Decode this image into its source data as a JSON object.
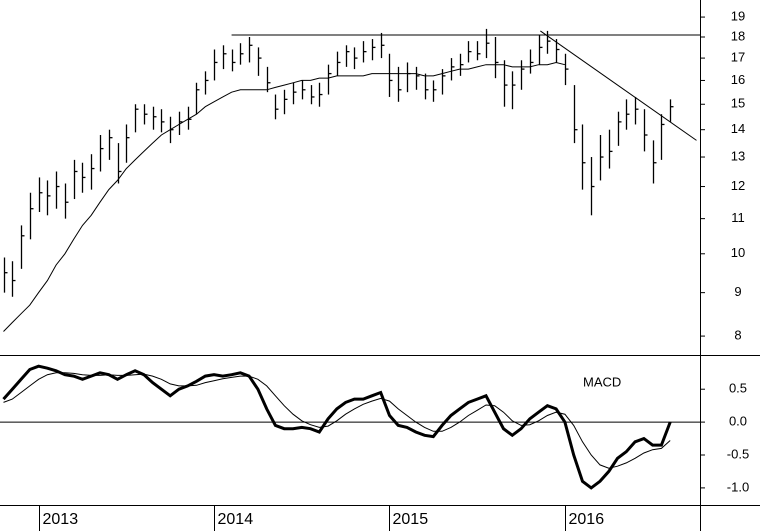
{
  "chart_data": [
    {
      "type": "ohlc",
      "log_scale": true,
      "color": "#000000",
      "x": [
        2012.8,
        2012.85,
        2012.9,
        2012.95,
        2013.0,
        2013.05,
        2013.1,
        2013.15,
        2013.2,
        2013.25,
        2013.3,
        2013.35,
        2013.4,
        2013.45,
        2013.5,
        2013.55,
        2013.6,
        2013.65,
        2013.7,
        2013.75,
        2013.8,
        2013.85,
        2013.9,
        2013.95,
        2014.0,
        2014.05,
        2014.1,
        2014.15,
        2014.2,
        2014.25,
        2014.3,
        2014.35,
        2014.4,
        2014.45,
        2014.5,
        2014.55,
        2014.6,
        2014.65,
        2014.7,
        2014.75,
        2014.8,
        2014.85,
        2014.9,
        2014.95,
        2015.0,
        2015.05,
        2015.1,
        2015.15,
        2015.2,
        2015.25,
        2015.3,
        2015.35,
        2015.4,
        2015.45,
        2015.5,
        2015.55,
        2015.6,
        2015.65,
        2015.7,
        2015.75,
        2015.8,
        2015.85,
        2015.9,
        2015.95,
        2016.0,
        2016.05,
        2016.1,
        2016.15,
        2016.2,
        2016.25,
        2016.3,
        2016.35,
        2016.4,
        2016.45,
        2016.5,
        2016.55,
        2016.6
      ],
      "high": [
        9.9,
        9.8,
        10.8,
        11.8,
        12.3,
        12.2,
        12.5,
        12.1,
        12.9,
        12.8,
        13.1,
        13.8,
        14.0,
        13.5,
        14.2,
        15.0,
        15.0,
        14.9,
        14.8,
        14.5,
        14.7,
        14.9,
        15.9,
        16.4,
        17.4,
        17.6,
        17.4,
        17.7,
        18.0,
        17.5,
        16.6,
        15.4,
        15.6,
        15.9,
        16.0,
        15.8,
        15.9,
        16.7,
        17.3,
        17.6,
        17.5,
        17.8,
        17.9,
        18.2,
        17.2,
        16.6,
        16.8,
        16.6,
        16.3,
        16.0,
        16.5,
        17.0,
        17.2,
        17.8,
        17.8,
        18.4,
        18.0,
        16.9,
        16.4,
        16.9,
        17.4,
        18.1,
        18.3,
        17.9,
        17.2,
        15.8,
        14.2,
        13.0,
        13.8,
        14.0,
        14.7,
        15.2,
        15.3,
        14.8,
        13.6,
        14.6,
        15.2
      ],
      "low": [
        9.0,
        8.9,
        9.6,
        10.4,
        11.2,
        11.1,
        11.3,
        11.0,
        11.6,
        11.8,
        11.9,
        12.5,
        12.9,
        12.1,
        12.8,
        13.9,
        14.2,
        14.0,
        13.9,
        13.5,
        13.8,
        14.0,
        14.6,
        15.4,
        16.0,
        16.5,
        16.4,
        16.7,
        16.8,
        16.2,
        15.5,
        14.4,
        14.6,
        15.0,
        15.2,
        15.0,
        14.9,
        15.4,
        16.2,
        16.6,
        16.5,
        16.8,
        16.9,
        17.0,
        15.3,
        15.1,
        15.5,
        15.6,
        15.2,
        15.1,
        15.4,
        16.0,
        16.2,
        16.8,
        16.9,
        17.0,
        16.1,
        14.9,
        14.8,
        15.6,
        16.3,
        16.7,
        17.2,
        16.8,
        15.8,
        13.5,
        11.9,
        11.1,
        12.2,
        12.6,
        13.4,
        14.0,
        14.2,
        13.2,
        12.1,
        12.9,
        14.3
      ],
      "close": [
        9.5,
        9.3,
        10.5,
        11.3,
        11.8,
        11.7,
        12.0,
        11.5,
        12.5,
        12.3,
        12.6,
        13.3,
        13.7,
        12.5,
        13.7,
        14.8,
        14.6,
        14.5,
        14.3,
        14.0,
        14.3,
        14.4,
        15.6,
        16.0,
        16.8,
        17.2,
        16.8,
        17.2,
        17.6,
        17.0,
        15.9,
        14.8,
        15.2,
        15.5,
        15.6,
        15.3,
        15.4,
        16.3,
        16.8,
        17.3,
        17.0,
        17.3,
        17.5,
        17.6,
        16.0,
        15.6,
        16.3,
        16.2,
        15.6,
        15.6,
        16.2,
        16.6,
        16.7,
        17.3,
        17.2,
        17.7,
        16.8,
        15.8,
        15.8,
        16.5,
        16.8,
        17.5,
        17.8,
        17.4,
        16.5,
        14.0,
        12.8,
        12.0,
        13.0,
        13.2,
        14.3,
        14.6,
        14.8,
        13.8,
        12.8,
        14.2,
        14.9
      ],
      "moving_average": [
        8.1,
        8.3,
        8.5,
        8.7,
        9.0,
        9.3,
        9.7,
        10.0,
        10.4,
        10.8,
        11.1,
        11.5,
        11.9,
        12.2,
        12.6,
        12.9,
        13.2,
        13.5,
        13.8,
        14.0,
        14.2,
        14.4,
        14.6,
        14.9,
        15.1,
        15.3,
        15.5,
        15.6,
        15.6,
        15.6,
        15.6,
        15.7,
        15.8,
        15.9,
        16.0,
        16.0,
        16.1,
        16.1,
        16.2,
        16.2,
        16.2,
        16.2,
        16.3,
        16.3,
        16.3,
        16.3,
        16.3,
        16.3,
        16.2,
        16.2,
        16.3,
        16.4,
        16.5,
        16.5,
        16.6,
        16.7,
        16.7,
        16.7,
        16.6,
        16.6,
        16.6,
        16.7,
        16.7,
        16.8,
        16.7,
        null,
        null,
        null,
        null,
        null,
        null,
        null,
        null,
        null,
        null,
        null,
        null
      ],
      "trendlines": [
        {
          "x": [
            2014.1,
            2016.77
          ],
          "y": [
            18.1,
            18.1
          ]
        },
        {
          "x": [
            2015.86,
            2016.75
          ],
          "y": [
            18.3,
            13.6
          ]
        }
      ],
      "xlim": [
        2012.78,
        2016.77
      ],
      "ylim": [
        7.6,
        19.9
      ],
      "yticks": [
        8,
        9,
        10,
        11,
        12,
        13,
        14,
        15,
        16,
        17,
        18,
        19
      ]
    },
    {
      "type": "line",
      "title": "MACD",
      "reference_line": 0,
      "macd": [
        0.35,
        0.5,
        0.65,
        0.8,
        0.85,
        0.82,
        0.78,
        0.72,
        0.7,
        0.65,
        0.7,
        0.75,
        0.72,
        0.65,
        0.72,
        0.78,
        0.72,
        0.6,
        0.5,
        0.4,
        0.5,
        0.55,
        0.62,
        0.7,
        0.72,
        0.7,
        0.72,
        0.75,
        0.7,
        0.5,
        0.2,
        -0.05,
        -0.1,
        -0.1,
        -0.08,
        -0.1,
        -0.15,
        0.05,
        0.2,
        0.3,
        0.35,
        0.35,
        0.4,
        0.45,
        0.1,
        -0.05,
        -0.08,
        -0.15,
        -0.2,
        -0.22,
        -0.05,
        0.1,
        0.2,
        0.3,
        0.35,
        0.4,
        0.15,
        -0.1,
        -0.2,
        -0.1,
        0.05,
        0.15,
        0.25,
        0.2,
        0.0,
        -0.5,
        -0.9,
        -1.0,
        -0.9,
        -0.75,
        -0.55,
        -0.45,
        -0.3,
        -0.25,
        -0.35,
        -0.35,
        0.0
      ],
      "signal": [
        0.3,
        0.35,
        0.45,
        0.55,
        0.65,
        0.72,
        0.75,
        0.75,
        0.74,
        0.72,
        0.71,
        0.71,
        0.72,
        0.71,
        0.71,
        0.72,
        0.73,
        0.7,
        0.65,
        0.58,
        0.55,
        0.55,
        0.56,
        0.6,
        0.63,
        0.66,
        0.68,
        0.7,
        0.7,
        0.65,
        0.55,
        0.4,
        0.25,
        0.12,
        0.02,
        -0.04,
        -0.08,
        -0.06,
        0.02,
        0.12,
        0.2,
        0.27,
        0.32,
        0.36,
        0.32,
        0.2,
        0.1,
        0.0,
        -0.08,
        -0.14,
        -0.14,
        -0.08,
        0.0,
        0.1,
        0.18,
        0.26,
        0.25,
        0.15,
        0.02,
        -0.05,
        -0.04,
        0.02,
        0.1,
        0.15,
        0.12,
        -0.05,
        -0.3,
        -0.5,
        -0.65,
        -0.7,
        -0.67,
        -0.62,
        -0.55,
        -0.47,
        -0.42,
        -0.4,
        -0.28
      ],
      "xlim": [
        2012.78,
        2016.77
      ],
      "ylim": [
        -1.26,
        1.02
      ],
      "yticks": [
        {
          "value": -1.0,
          "label": "-1.0"
        },
        -0.5,
        {
          "value": 0.0,
          "label": "0.0"
        },
        0.5
      ],
      "xticks": [
        2013,
        2014,
        2015,
        2016
      ]
    }
  ]
}
